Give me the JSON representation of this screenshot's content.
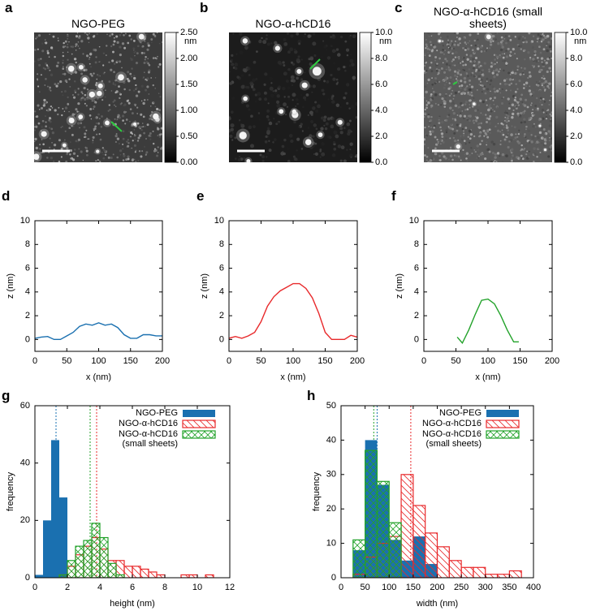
{
  "images": [
    {
      "label": "a",
      "title": "NGO-PEG",
      "colorbar": {
        "lim": [
          0,
          2.5
        ],
        "unit": "nm",
        "ticks": [
          {
            "value": 0,
            "label": "0.00"
          },
          {
            "value": 0.5,
            "label": "0.50"
          },
          {
            "value": 1,
            "label": "1.00"
          },
          {
            "value": 1.5,
            "label": "1.50"
          },
          {
            "value": 2,
            "label": "2.00"
          },
          {
            "value": 2.5,
            "label": "2.50"
          }
        ]
      }
    },
    {
      "label": "b",
      "title": "NGO-α-hCD16",
      "colorbar": {
        "lim": [
          0,
          10
        ],
        "unit": "nm",
        "ticks": [
          {
            "value": 0,
            "label": "0.0"
          },
          {
            "value": 2,
            "label": "2.0"
          },
          {
            "value": 4,
            "label": "4.0"
          },
          {
            "value": 6,
            "label": "6.0"
          },
          {
            "value": 8,
            "label": "8.0"
          },
          {
            "value": 10,
            "label": "10.0"
          }
        ]
      }
    },
    {
      "label": "c",
      "title": "NGO-α-hCD16 (small sheets)",
      "colorbar": {
        "lim": [
          0,
          10
        ],
        "unit": "nm",
        "ticks": [
          {
            "value": 0,
            "label": "0.0"
          },
          {
            "value": 2,
            "label": "2.0"
          },
          {
            "value": 4,
            "label": "4.0"
          },
          {
            "value": 6,
            "label": "6.0"
          },
          {
            "value": 8,
            "label": "8.0"
          },
          {
            "value": 10,
            "label": "10.0"
          }
        ]
      }
    }
  ],
  "chart_data": [
    {
      "type": "line",
      "label": "d",
      "xlabel": "x (nm)",
      "ylabel": "z (nm)",
      "x": [
        0,
        10,
        20,
        30,
        40,
        50,
        60,
        70,
        80,
        90,
        100,
        110,
        120,
        130,
        140,
        150,
        160,
        170,
        180,
        190,
        200
      ],
      "series": [
        {
          "color": "#1a70b0",
          "values": [
            0.1,
            0.2,
            0.25,
            0.0,
            0.0,
            0.3,
            0.6,
            1.1,
            1.3,
            1.2,
            1.4,
            1.2,
            1.3,
            1.0,
            0.4,
            0.1,
            0.1,
            0.4,
            0.4,
            0.3,
            0.3
          ]
        }
      ],
      "xlim": [
        0,
        200
      ],
      "ylim": [
        -1,
        10
      ],
      "xticks": [
        0,
        50,
        100,
        150,
        200
      ],
      "yticks": [
        0,
        2,
        4,
        6,
        8,
        10
      ]
    },
    {
      "type": "line",
      "label": "e",
      "xlabel": "x (nm)",
      "ylabel": "z (nm)",
      "x": [
        0,
        10,
        20,
        30,
        40,
        50,
        60,
        70,
        80,
        90,
        100,
        110,
        120,
        130,
        140,
        150,
        160,
        170,
        180,
        190,
        200
      ],
      "series": [
        {
          "color": "#e8292b",
          "values": [
            0.1,
            0.25,
            0.1,
            0.3,
            0.6,
            1.5,
            2.8,
            3.6,
            4.1,
            4.4,
            4.7,
            4.7,
            4.3,
            3.5,
            2.2,
            0.6,
            0.0,
            0.0,
            0.0,
            0.35,
            0.2
          ]
        }
      ],
      "xlim": [
        0,
        200
      ],
      "ylim": [
        -1,
        10
      ],
      "xticks": [
        0,
        50,
        100,
        150,
        200
      ],
      "yticks": [
        0,
        2,
        4,
        6,
        8,
        10
      ]
    },
    {
      "type": "line",
      "label": "f",
      "xlabel": "x (nm)",
      "ylabel": "z (nm)",
      "x": [
        52,
        60,
        70,
        80,
        90,
        100,
        110,
        120,
        130,
        140,
        148
      ],
      "series": [
        {
          "color": "#22a22a",
          "values": [
            0.2,
            -0.3,
            0.8,
            2.1,
            3.3,
            3.4,
            3.0,
            2.0,
            0.8,
            -0.2,
            -0.2
          ]
        }
      ],
      "xlim": [
        0,
        200
      ],
      "ylim": [
        -1,
        10
      ],
      "xticks": [
        0,
        50,
        100,
        150,
        200
      ],
      "yticks": [
        0,
        2,
        4,
        6,
        8,
        10
      ]
    },
    {
      "type": "histogram",
      "label": "g",
      "xlabel": "height (nm)",
      "ylabel": "frequency",
      "legend": "upper right",
      "bins": [
        0,
        0.5,
        1,
        1.5,
        2,
        2.5,
        3,
        3.5,
        4,
        4.5,
        5,
        5.5,
        6,
        6.5,
        7,
        7.5,
        8,
        8.5,
        9,
        9.5,
        10,
        10.5,
        11,
        11.5,
        12
      ],
      "series": [
        {
          "name": "NGO-PEG",
          "color": "#1a70b0",
          "fill": "solid",
          "mean": 1.3,
          "values": [
            1,
            20,
            48,
            28,
            0,
            0,
            0,
            0,
            0,
            0,
            0,
            0,
            0,
            0,
            0,
            0,
            0,
            0,
            0,
            0,
            0,
            0,
            0,
            0
          ]
        },
        {
          "name": "NGO-α-hCD16",
          "color": "#e8292b",
          "fill": "hatch",
          "mean": 3.8,
          "values": [
            0,
            0,
            0,
            1,
            4,
            8,
            11,
            14,
            10,
            6,
            6,
            4,
            4,
            3,
            2,
            1,
            0,
            0,
            1,
            1,
            0,
            1,
            0,
            0
          ]
        },
        {
          "name": "NGO-α-hCD16 (small sheets)",
          "color": "#22a22a",
          "fill": "crosshatch",
          "mean": 3.4,
          "values": [
            0,
            0,
            0,
            1,
            6,
            11,
            13,
            19,
            14,
            5,
            1,
            0,
            0,
            0,
            0,
            0,
            0,
            0,
            0,
            0,
            0,
            0,
            0,
            0
          ]
        }
      ],
      "xlim": [
        0,
        12
      ],
      "ylim": [
        0,
        60
      ],
      "xticks": [
        0,
        2,
        4,
        6,
        8,
        10,
        12
      ],
      "yticks": [
        0,
        20,
        40,
        60
      ]
    },
    {
      "type": "histogram",
      "label": "h",
      "xlabel": "width (nm)",
      "ylabel": "frequency",
      "legend": "upper right",
      "bins": [
        0,
        25,
        50,
        75,
        100,
        125,
        150,
        175,
        200,
        225,
        250,
        275,
        300,
        325,
        350,
        375,
        400
      ],
      "series": [
        {
          "name": "NGO-PEG",
          "color": "#1a70b0",
          "fill": "solid",
          "mean": 75,
          "values": [
            0,
            8,
            40,
            27,
            11,
            5,
            12,
            4,
            0,
            0,
            0,
            0,
            0,
            0,
            0,
            0
          ]
        },
        {
          "name": "NGO-α-hCD16",
          "color": "#e8292b",
          "fill": "hatch",
          "mean": 145,
          "values": [
            0,
            1,
            6,
            10,
            12,
            30,
            21,
            13,
            9,
            5,
            3,
            3,
            1,
            1,
            2,
            0
          ]
        },
        {
          "name": "NGO-α-hCD16 (small sheets)",
          "color": "#22a22a",
          "fill": "crosshatch",
          "mean": 68,
          "values": [
            0,
            11,
            37,
            28,
            16,
            0,
            0,
            0,
            0,
            0,
            0,
            0,
            0,
            0,
            0,
            0
          ]
        }
      ],
      "xlim": [
        0,
        400
      ],
      "ylim": [
        0,
        50
      ],
      "xticks": [
        0,
        50,
        100,
        150,
        200,
        250,
        300,
        350,
        400
      ],
      "yticks": [
        0,
        10,
        20,
        30,
        40,
        50
      ]
    }
  ]
}
